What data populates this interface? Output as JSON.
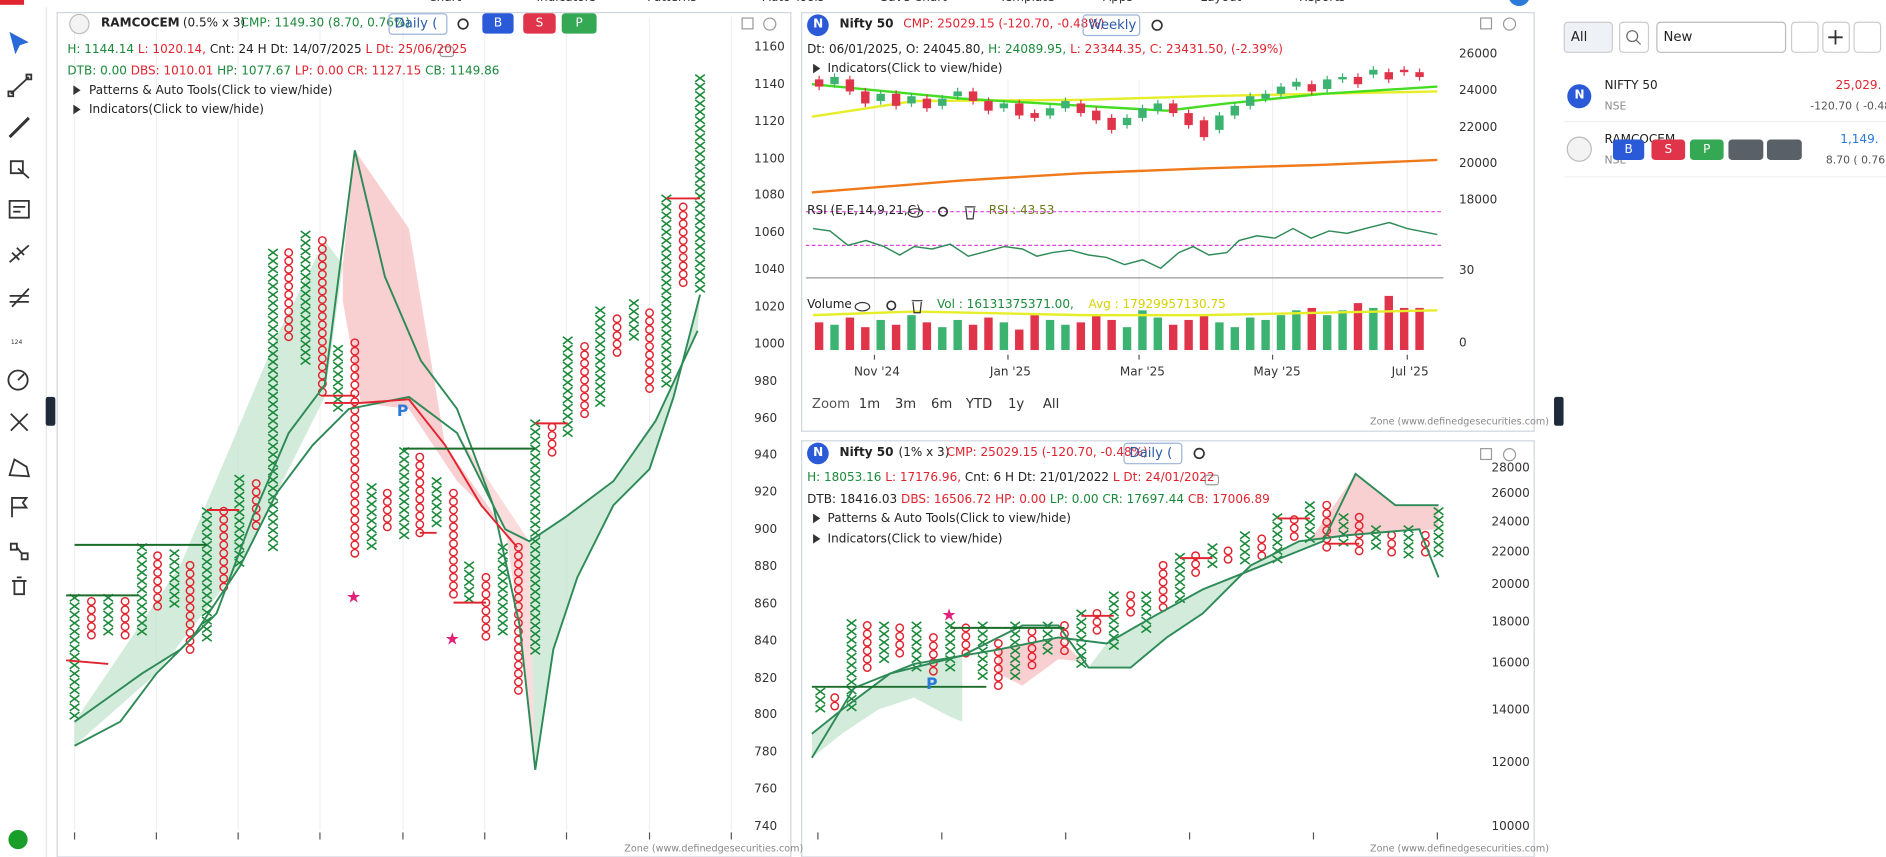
{
  "menu": [
    "Chart",
    "Indicators",
    "Patterns",
    "Auto Tools",
    "Save Chart",
    "Template",
    "Apps",
    "Layout",
    "Reports"
  ],
  "toolbar": {
    "ruler_label": "124"
  },
  "chart1": {
    "symbol": "RAMCOCEM",
    "box_size": "(0.5% x 3)",
    "cmp": "CMP: 1149.30 (8.70, 0.76%)",
    "timeframe": "Daily (",
    "buttons": [
      "B",
      "S",
      "P"
    ],
    "info1": [
      "H: 1144.14",
      "L: 1020.14,",
      "Cnt: 24",
      "H Dt: 14/07/2025",
      "L Dt: 25/06/2025"
    ],
    "info2": [
      "DTB: 0.00",
      "DBS: 1010.01",
      "HP: 1077.67",
      "LP: 0.00",
      "CR: 1127.15",
      "CB: 1149.86"
    ],
    "toggles": [
      "Patterns & Auto Tools(Click to view/hide)",
      "Indicators(Click to view/hide)"
    ],
    "yticks": [
      1160,
      1140,
      1120,
      1100,
      1080,
      1060,
      1040,
      1020,
      1000,
      980,
      960,
      940,
      920,
      900,
      880,
      860,
      840,
      820,
      800,
      780,
      760,
      740
    ],
    "marker": "P",
    "watermark": "Zone (www.definedgesecurities.com)"
  },
  "chart2": {
    "symbol_icon": "N",
    "symbol": "Nifty 50",
    "cmp": "CMP: 25029.15 (-120.70, -0.48%)",
    "timeframe": "Weekly",
    "info": [
      "Dt: 06/01/2025,",
      "O: 24045.80,",
      "H: 24089.95,",
      "L: 23344.35,",
      "C: 23431.50,",
      "(-2.39%)"
    ],
    "toggle": "Indicators(Click to view/hide)",
    "yticks": [
      26000,
      24000,
      22000,
      20000,
      18000
    ],
    "rsi_label": "RSI (E,E,14,9,21,C)",
    "rsi_value": "RSI : 43.53",
    "rsi_tick": 30,
    "volume_label": "Volume",
    "volume_value": "Vol : 16131375371.00,",
    "volume_avg": "Avg : 17929957130.75",
    "volume_tick": 0,
    "xticks": [
      "Nov '24",
      "Jan '25",
      "Mar '25",
      "May '25",
      "Jul '25"
    ],
    "zoom_label": "Zoom",
    "zoom_buttons": [
      "1m",
      "3m",
      "6m",
      "YTD",
      "1y",
      "All"
    ],
    "watermark": "Zone (www.definedgesecurities.com)"
  },
  "chart3": {
    "symbol_icon": "N",
    "symbol": "Nifty 50",
    "box_size": "(1% x 3)",
    "cmp": "CMP: 25029.15 (-120.70, -0.48%)",
    "timeframe": "Daily (",
    "info1": [
      "H: 18053.16",
      "L: 17176.96,",
      "Cnt: 6",
      "H Dt: 21/01/2022",
      "L Dt: 24/01/2022"
    ],
    "info2": [
      "DTB: 18416.03",
      "DBS: 16506.72",
      "HP: 0.00",
      "LP: 0.00",
      "CR: 17697.44",
      "CB: 17006.89"
    ],
    "toggles": [
      "Patterns & Auto Tools(Click to view/hide)",
      "Indicators(Click to view/hide)"
    ],
    "yticks": [
      28000,
      26000,
      24000,
      22000,
      20000,
      18000,
      16000,
      14000,
      12000,
      10000
    ],
    "marker": "P",
    "watermark": "Zone (www.definedgesecurities.com)"
  },
  "watchlist": {
    "filter": "All",
    "search": "New",
    "items": [
      {
        "icon": "N",
        "symbol": "NIFTY 50",
        "exchange": "NSE",
        "price": "25,029.",
        "change": "-120.70 ( -0.48"
      },
      {
        "symbol": "RAMCOCEM",
        "exchange": "NSE",
        "price": "1,149.",
        "change": "8.70 ( 0.76"
      }
    ],
    "buttons": [
      "B",
      "S",
      "P"
    ]
  }
}
